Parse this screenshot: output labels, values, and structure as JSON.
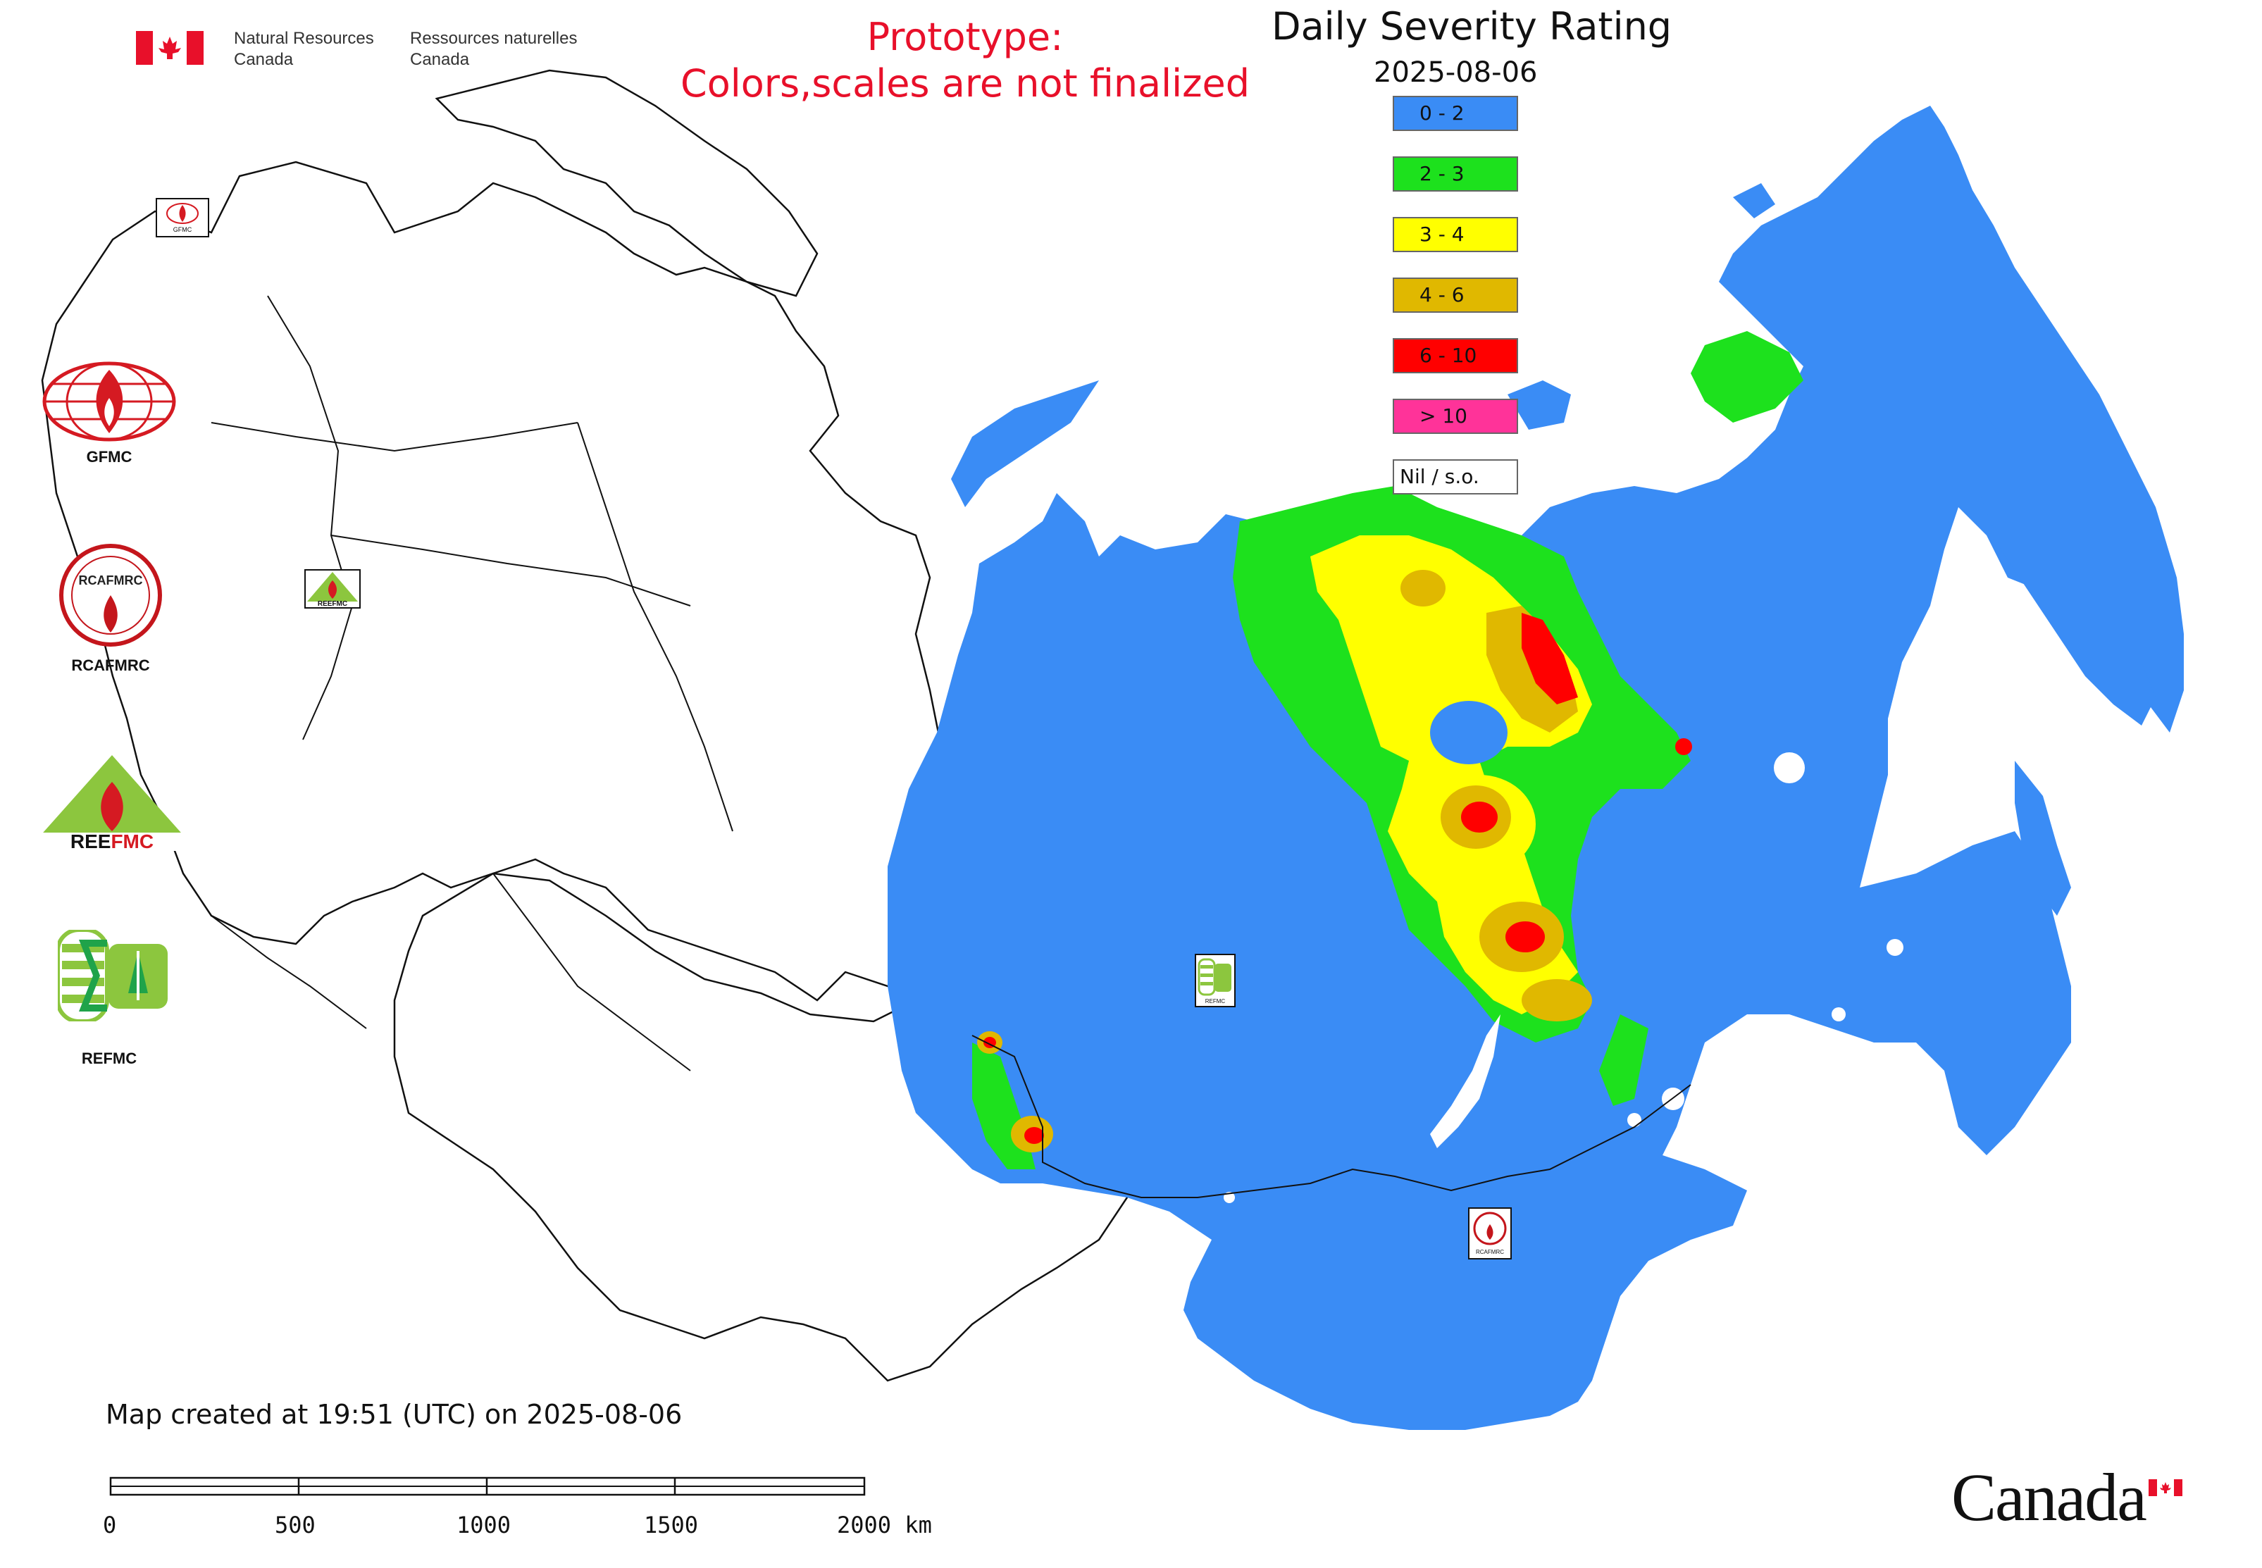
{
  "header": {
    "department_en_line1": "Natural Resources",
    "department_en_line2": "Canada",
    "department_fr_line1": "Ressources naturelles",
    "department_fr_line2": "Canada",
    "prototype_line1": "Prototype:",
    "prototype_line2": "Colors,scales are not finalized"
  },
  "title": "Daily Severity Rating",
  "date": "2025-08-06",
  "legend": [
    {
      "label": "0 - 2",
      "color": "#3a8cf5"
    },
    {
      "label": "2 - 3",
      "color": "#1de11d"
    },
    {
      "label": "3 - 4",
      "color": "#ffff00"
    },
    {
      "label": "4 - 6",
      "color": "#e0b800"
    },
    {
      "label": "6 - 10",
      "color": "#ff0000"
    },
    {
      "label": "> 10",
      "color": "#ff3399"
    },
    {
      "label": "Nil / s.o.",
      "color": "#ffffff"
    }
  ],
  "logos": [
    {
      "caption": "GFMC"
    },
    {
      "caption": "RCAFMRC"
    },
    {
      "caption": "REEFMC"
    },
    {
      "caption": "REFMC"
    }
  ],
  "map_markers": {
    "gfmc_small": "GFMC",
    "reefmc_small": "REEFMC",
    "refmc_small": "REFMC",
    "rcafmrc_small": "RCAFMRC"
  },
  "footer": {
    "created": "Map created at 19:51 (UTC) on 2025-08-06",
    "scale_labels": [
      "0",
      "500",
      "1000",
      "1500",
      "2000 km"
    ],
    "canada_wordmark": "Canada"
  },
  "colors": {
    "prototype_text": "#e8102a",
    "flag_red": "#e8102a"
  }
}
